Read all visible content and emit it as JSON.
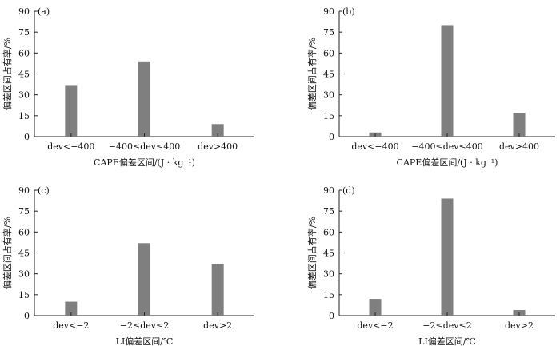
{
  "chart_data": [
    {
      "type": "bar",
      "panel_label": "(a)",
      "categories": [
        "dev<−400",
        "−400≤dev≤400",
        "dev>400"
      ],
      "values": [
        37,
        54,
        9
      ],
      "xlabel": "CAPE偏差区间/(J · kg⁻¹)",
      "ylabel": "偏差区间占有率/%",
      "ylim": [
        0,
        90
      ],
      "yticks": [
        0,
        15,
        30,
        45,
        60,
        75,
        90
      ],
      "grid": false
    },
    {
      "type": "bar",
      "panel_label": "(b)",
      "categories": [
        "dev<−400",
        "−400≤dev≤400",
        "dev>400"
      ],
      "values": [
        3,
        80,
        17
      ],
      "xlabel": "CAPE偏差区间/(J · kg⁻¹)",
      "ylabel": "偏差区间占有率/%",
      "ylim": [
        0,
        90
      ],
      "yticks": [
        0,
        15,
        30,
        45,
        60,
        75,
        90
      ],
      "grid": false
    },
    {
      "type": "bar",
      "panel_label": "(c)",
      "categories": [
        "dev<−2",
        "−2≤dev≤2",
        "dev>2"
      ],
      "values": [
        10,
        52,
        37
      ],
      "xlabel": "LI偏差区间/℃",
      "ylabel": "偏差区间占有率/%",
      "ylim": [
        0,
        90
      ],
      "yticks": [
        0,
        15,
        30,
        45,
        60,
        75,
        90
      ],
      "grid": false
    },
    {
      "type": "bar",
      "panel_label": "(d)",
      "categories": [
        "dev<−2",
        "−2≤dev≤2",
        "dev>2"
      ],
      "values": [
        12,
        84,
        4
      ],
      "xlabel": "LI偏差区间/℃",
      "ylabel": "偏差区间占有率/%",
      "ylim": [
        0,
        90
      ],
      "yticks": [
        0,
        15,
        30,
        45,
        60,
        75,
        90
      ],
      "grid": false
    }
  ],
  "colors": {
    "bar": "#7f7f7f",
    "axis": "#222222"
  }
}
